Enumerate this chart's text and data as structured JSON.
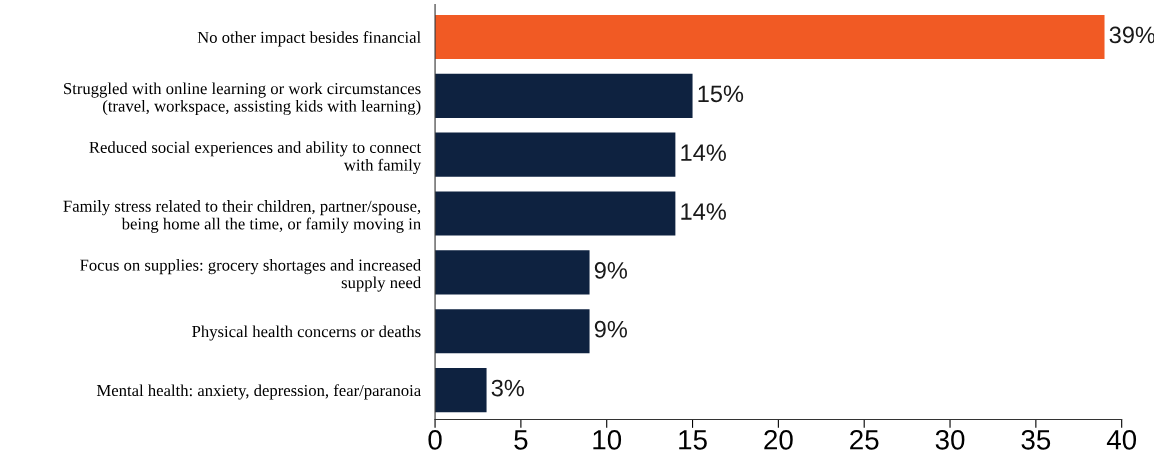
{
  "chart_data": {
    "type": "bar",
    "orientation": "horizontal",
    "categories": [
      "No other impact besides financial",
      "Struggled with online learning or work circumstances\n(travel, workspace, assisting kids with learning)",
      "Reduced social experiences and ability to connect\nwith family",
      "Family stress related to their children, partner/spouse,\nbeing home all the time, or family moving in",
      "Focus on supplies: grocery shortages and increased\nsupply need",
      "Physical health concerns or deaths",
      "Mental health: anxiety, depression, fear/paranoia"
    ],
    "values": [
      39,
      15,
      14,
      14,
      9,
      9,
      3
    ],
    "colors": [
      "#f15a24",
      "#0e2240",
      "#0e2240",
      "#0e2240",
      "#0e2240",
      "#0e2240",
      "#0e2240"
    ],
    "value_labels": [
      "39%",
      "15%",
      "14%",
      "14%",
      "9%",
      "9%",
      "3%"
    ],
    "xlim": [
      0,
      40
    ],
    "xticks": [
      0,
      5,
      10,
      15,
      20,
      25,
      30,
      35,
      40
    ],
    "grid": false,
    "legend": false
  }
}
